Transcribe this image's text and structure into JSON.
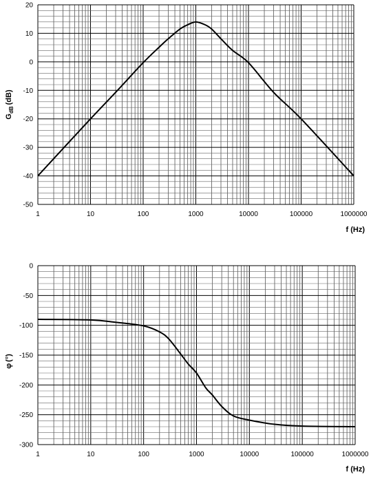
{
  "chart_data": [
    {
      "type": "line",
      "xscale": "log",
      "xlim": [
        1,
        1000000
      ],
      "ylim": [
        -50,
        20
      ],
      "xlabel": "f (Hz)",
      "ylabel": "G",
      "ylabel_sub": "dB",
      "ylabel_unit": "(dB)",
      "xticks": [
        "1",
        "10",
        "100",
        "1000",
        "10000",
        "100000",
        "1000000"
      ],
      "yticks": [
        "20",
        "10",
        "0",
        "-10",
        "-20",
        "-30",
        "-40",
        "-50"
      ],
      "ytick_values": [
        20,
        10,
        0,
        -10,
        -20,
        -30,
        -40,
        -50
      ],
      "grid": true,
      "line_color": "#000000",
      "series": [
        {
          "x": [
            1,
            10,
            30,
            100,
            200,
            300,
            500,
            700,
            1000,
            1500,
            2000,
            3000,
            5000,
            10000,
            30000,
            100000,
            1000000
          ],
          "y": [
            -40,
            -20,
            -10.7,
            -0.3,
            5.1,
            8.1,
            11.5,
            13.0,
            14.0,
            13.0,
            11.5,
            8.1,
            4.0,
            -0.3,
            -10.7,
            -20,
            -40
          ]
        }
      ]
    },
    {
      "type": "line",
      "xscale": "log",
      "xlim": [
        1,
        1000000
      ],
      "ylim": [
        -300,
        0
      ],
      "xlabel": "f (Hz)",
      "ylabel": "φ",
      "ylabel_unit": "(°)",
      "xticks": [
        "1",
        "10",
        "100",
        "1000",
        "10000",
        "100000",
        "1000000"
      ],
      "yticks": [
        "0",
        "-50",
        "-100",
        "-150",
        "-200",
        "-250",
        "-300"
      ],
      "ytick_values": [
        0,
        -50,
        -100,
        -150,
        -200,
        -250,
        -300
      ],
      "grid": true,
      "line_color": "#000000",
      "series": [
        {
          "x": [
            1,
            10,
            30,
            100,
            200,
            300,
            500,
            700,
            1000,
            1500,
            2000,
            3000,
            5000,
            10000,
            30000,
            100000,
            1000000
          ],
          "y": [
            -90,
            -91,
            -95,
            -101,
            -111,
            -123,
            -148,
            -165,
            -180,
            -205,
            -217,
            -236,
            -252,
            -259,
            -266,
            -269,
            -270
          ]
        }
      ]
    }
  ]
}
